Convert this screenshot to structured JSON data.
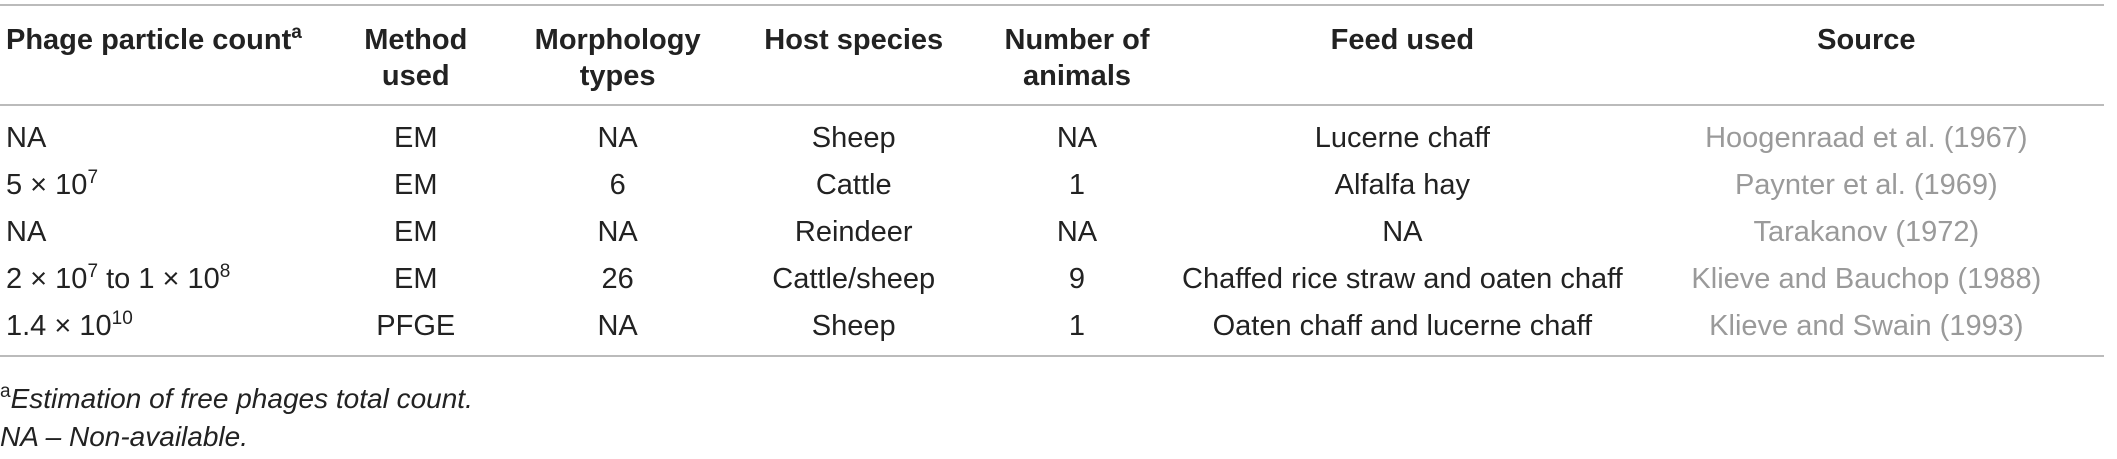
{
  "table": {
    "headers": {
      "col1": "Phage particle count",
      "col1_sup": "a",
      "col2_l1": "Method",
      "col2_l2": "used",
      "col3_l1": "Morphology",
      "col3_l2": "types",
      "col4": "Host species",
      "col5_l1": "Number of",
      "col5_l2": "animals",
      "col6": "Feed used",
      "col7": "Source"
    },
    "rows": [
      {
        "count_base": "NA",
        "count_sup": "",
        "count_mid": "",
        "count_sup2": "",
        "method": "EM",
        "morphology": "NA",
        "host": "Sheep",
        "animals": "NA",
        "feed": "Lucerne chaff",
        "source": "Hoogenraad et al. (1967)"
      },
      {
        "count_base": "5 × 10",
        "count_sup": "7",
        "count_mid": "",
        "count_sup2": "",
        "method": "EM",
        "morphology": "6",
        "host": "Cattle",
        "animals": "1",
        "feed": "Alfalfa hay",
        "source": "Paynter et al. (1969)"
      },
      {
        "count_base": "NA",
        "count_sup": "",
        "count_mid": "",
        "count_sup2": "",
        "method": "EM",
        "morphology": "NA",
        "host": "Reindeer",
        "animals": "NA",
        "feed": "NA",
        "source": "Tarakanov (1972)"
      },
      {
        "count_base": "2 × 10",
        "count_sup": "7",
        "count_mid": " to 1 × 10",
        "count_sup2": "8",
        "method": "EM",
        "morphology": "26",
        "host": "Cattle/sheep",
        "animals": "9",
        "feed": "Chaffed rice straw and oaten chaff",
        "source": "Klieve and Bauchop (1988)"
      },
      {
        "count_base": "1.4 × 10",
        "count_sup": "10",
        "count_mid": "",
        "count_sup2": "",
        "method": "PFGE",
        "morphology": "NA",
        "host": "Sheep",
        "animals": "1",
        "feed": "Oaten chaff and lucerne chaff",
        "source": "Klieve and Swain (1993)"
      }
    ]
  },
  "notes": {
    "note1_sup": "a",
    "note1": "Estimation of free phages total count.",
    "note2": "NA – Non-available."
  }
}
